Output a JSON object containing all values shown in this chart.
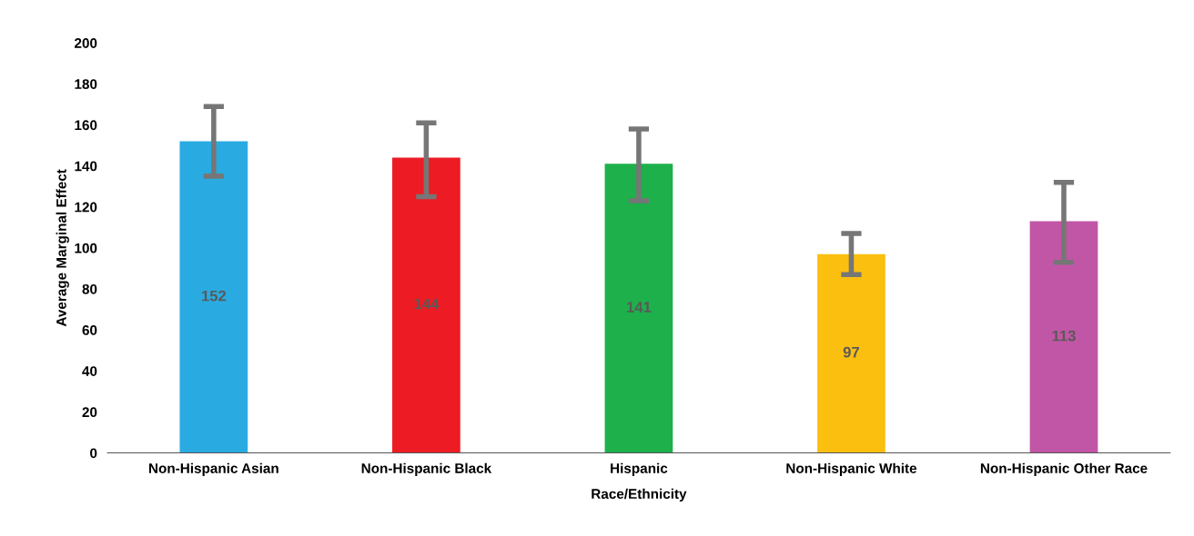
{
  "chart_data": {
    "type": "bar",
    "xlabel": "Race/Ethnicity",
    "ylabel": "Average Marginal Effect",
    "categories": [
      "Non-Hispanic Asian",
      "Non-Hispanic Black",
      "Hispanic",
      "Non-Hispanic White",
      "Non-Hispanic Other Race"
    ],
    "values": [
      152,
      144,
      141,
      97,
      113
    ],
    "colors": [
      "#29abe2",
      "#ed1c24",
      "#1db04b",
      "#fbbf10",
      "#c256a6"
    ],
    "errors": [
      [
        135,
        169
      ],
      [
        125,
        161
      ],
      [
        123,
        158
      ],
      [
        87,
        107
      ],
      [
        93,
        132
      ]
    ],
    "data_labels": true,
    "ylim": [
      0,
      200
    ],
    "yticks": [
      0,
      20,
      40,
      60,
      80,
      100,
      120,
      140,
      160,
      180,
      200
    ],
    "grid": false,
    "legend": false
  }
}
